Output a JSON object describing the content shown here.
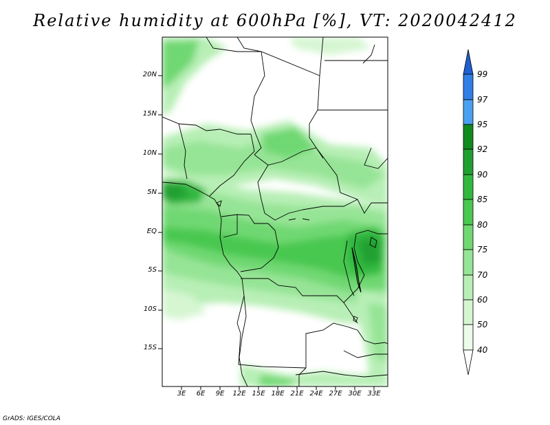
{
  "title": "Relative humidity at 600hPa [%], VT: 2020042412",
  "credit": "GrADS: IGES/COLA",
  "map": {
    "lon_range": [
      0,
      35
    ],
    "lat_range": [
      -20,
      25
    ],
    "lat_ticks": [
      "20N",
      "15N",
      "10N",
      "5N",
      "EQ",
      "5S",
      "10S",
      "15S"
    ],
    "lon_ticks": [
      "3E",
      "6E",
      "9E",
      "12E",
      "15E",
      "18E",
      "21E",
      "24E",
      "27E",
      "30E",
      "33E"
    ]
  },
  "colorbar": {
    "levels": [
      "99",
      "97",
      "95",
      "92",
      "90",
      "85",
      "80",
      "75",
      "70",
      "60",
      "50",
      "40"
    ],
    "colors": {
      "above_99": "#1f5fd0",
      "97_99": "#2f7fe6",
      "95_97": "#4aa0f0",
      "92_95": "#0f8a1f",
      "90_92": "#20a030",
      "85_90": "#33b83f",
      "80_85": "#4ac850",
      "75_80": "#6fd872",
      "70_75": "#96e496",
      "60_70": "#b8efb6",
      "50_60": "#d6f6d2",
      "40_50": "#edfbe9",
      "below_40": "#ffffff"
    }
  }
}
